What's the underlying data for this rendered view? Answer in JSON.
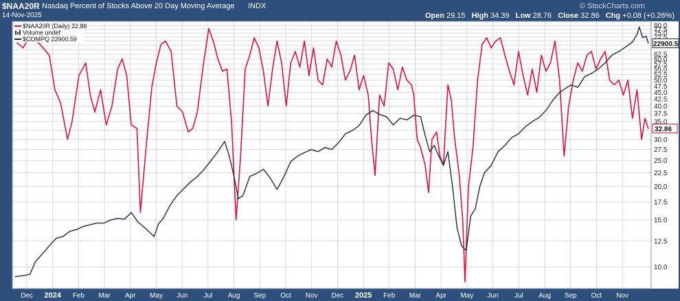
{
  "header": {
    "symbol": "$NAA20R",
    "description": "Nasdaq Percent of Stocks Above 20 Day Moving Average",
    "exchange": "INDX",
    "date": "14-Nov-2025",
    "watermark": "© StockCharts.com",
    "ohlc": {
      "open_label": "Open",
      "open": "29.15",
      "high_label": "High",
      "high": "34.39",
      "low_label": "Low",
      "low": "28.76",
      "close_label": "Close",
      "close": "32.86",
      "chg_label": "Chg",
      "chg": "+0.08 (+0.26%)"
    }
  },
  "legend": [
    {
      "label": "$NAA20R (Daily) 32.86",
      "color": "#d9113f"
    },
    {
      "label": "Volume undef",
      "color": "#333333"
    },
    {
      "label": "$COMPQ 22900.59",
      "color": "#1b2a3d"
    }
  ],
  "colors": {
    "naa20r": "#d9113f",
    "compq": "#1b2a3d",
    "grid": "#d9d9d9",
    "frame": "#2e4f7b"
  },
  "chart_data": {
    "type": "line",
    "x_axis_labels": [
      "Dec",
      "2024",
      "Feb",
      "Mar",
      "Apr",
      "May",
      "Jun",
      "Jul",
      "Aug",
      "Sep",
      "Oct",
      "Nov",
      "Dec",
      "2025",
      "Feb",
      "Mar",
      "Apr",
      "May",
      "Jun",
      "Jul",
      "Aug",
      "Sep",
      "Oct",
      "Nov"
    ],
    "y_tick_labels": [
      "80.0",
      "77.5",
      "75.0",
      "72.5",
      "70.0",
      "67.5",
      "65.0",
      "62.5",
      "60.0",
      "57.5",
      "55.0",
      "52.5",
      "50.0",
      "47.5",
      "45.0",
      "42.5",
      "40.0",
      "37.5",
      "35.0",
      "32.5",
      "30.0",
      "27.5",
      "25.0",
      "22.5",
      "20.0",
      "17.5",
      "15.0",
      "12.5",
      "10.0"
    ],
    "y_ticks_visible": [
      "80.0",
      "77.5",
      "75.0",
      "72.5",
      "70.0",
      "62.5",
      "60.0",
      "57.5",
      "55.0",
      "52.5",
      "50.0",
      "47.5",
      "45.0",
      "42.5",
      "40.0",
      "37.5",
      "35.0",
      "30.0",
      "27.5",
      "25.0",
      "22.5",
      "20.0",
      "17.5",
      "15.0",
      "12.5",
      "10.0"
    ],
    "y_scale": "log",
    "ylim": [
      8.3,
      83
    ],
    "last_value_labels": {
      "naa20r": "32.86",
      "compq": "22900.5"
    },
    "series": [
      {
        "name": "$NAA20R (Daily) 32.86",
        "unit": "percent",
        "points": [
          [
            0,
            70
          ],
          [
            0.7,
            66
          ],
          [
            1.3,
            73
          ],
          [
            2.2,
            68
          ],
          [
            3,
            62
          ],
          [
            3.5,
            46
          ],
          [
            4,
            41
          ],
          [
            4.6,
            30
          ],
          [
            5,
            35
          ],
          [
            5.6,
            52
          ],
          [
            6.2,
            58
          ],
          [
            6.6,
            44
          ],
          [
            7,
            38
          ],
          [
            7.5,
            46
          ],
          [
            8,
            34
          ],
          [
            8.5,
            40
          ],
          [
            9,
            55
          ],
          [
            9.4,
            60
          ],
          [
            9.8,
            52
          ],
          [
            10.2,
            34
          ],
          [
            10.7,
            33
          ],
          [
            11,
            16
          ],
          [
            11.5,
            28
          ],
          [
            12,
            47
          ],
          [
            12.4,
            58
          ],
          [
            12.8,
            68
          ],
          [
            13.2,
            70
          ],
          [
            13.7,
            64
          ],
          [
            14.2,
            40
          ],
          [
            14.7,
            38
          ],
          [
            15.2,
            32
          ],
          [
            15.6,
            33
          ],
          [
            16,
            38
          ],
          [
            16.5,
            56
          ],
          [
            17,
            78
          ],
          [
            17.4,
            70
          ],
          [
            17.8,
            60
          ],
          [
            18.2,
            54
          ],
          [
            18.6,
            55
          ],
          [
            19,
            35
          ],
          [
            19.4,
            15
          ],
          [
            19.8,
            26
          ],
          [
            20.2,
            55
          ],
          [
            20.6,
            62
          ],
          [
            21,
            72
          ],
          [
            21.4,
            66
          ],
          [
            21.8,
            54
          ],
          [
            22.2,
            40
          ],
          [
            22.6,
            55
          ],
          [
            23,
            70
          ],
          [
            23.4,
            58
          ],
          [
            23.8,
            40
          ],
          [
            24.2,
            58
          ],
          [
            24.6,
            64
          ],
          [
            25,
            56
          ],
          [
            25.4,
            70
          ],
          [
            25.8,
            52
          ],
          [
            26.2,
            66
          ],
          [
            26.6,
            50
          ],
          [
            27,
            48
          ],
          [
            27.4,
            60
          ],
          [
            27.8,
            56
          ],
          [
            28.2,
            70
          ],
          [
            28.6,
            62
          ],
          [
            29,
            50
          ],
          [
            29.4,
            54
          ],
          [
            29.8,
            62
          ],
          [
            30.2,
            46
          ],
          [
            30.6,
            52
          ],
          [
            31,
            44
          ],
          [
            31.3,
            30
          ],
          [
            31.6,
            22
          ],
          [
            32,
            44
          ],
          [
            32.4,
            40
          ],
          [
            32.8,
            58
          ],
          [
            33.2,
            55
          ],
          [
            33.6,
            46
          ],
          [
            34,
            56
          ],
          [
            34.4,
            50
          ],
          [
            34.8,
            48
          ],
          [
            35,
            44
          ],
          [
            35.3,
            30
          ],
          [
            35.6,
            28
          ],
          [
            36,
            24
          ],
          [
            36.3,
            19
          ],
          [
            36.6,
            30
          ],
          [
            37,
            32
          ],
          [
            37.3,
            26
          ],
          [
            37.6,
            24
          ],
          [
            38,
            48
          ],
          [
            38.3,
            42
          ],
          [
            38.6,
            30
          ],
          [
            39,
            22
          ],
          [
            39.3,
            15
          ],
          [
            39.5,
            8.8
          ],
          [
            39.8,
            20
          ],
          [
            40.2,
            28
          ],
          [
            40.6,
            50
          ],
          [
            41,
            68
          ],
          [
            41.4,
            72
          ],
          [
            41.8,
            66
          ],
          [
            42.2,
            70
          ],
          [
            42.6,
            72
          ],
          [
            43,
            62
          ],
          [
            43.4,
            54
          ],
          [
            43.8,
            48
          ],
          [
            44.2,
            64
          ],
          [
            44.6,
            52
          ],
          [
            45,
            44
          ],
          [
            45.4,
            55
          ],
          [
            45.8,
            45
          ],
          [
            46.2,
            62
          ],
          [
            46.6,
            54
          ],
          [
            47,
            58
          ],
          [
            47.4,
            70
          ],
          [
            47.8,
            50
          ],
          [
            48.2,
            26
          ],
          [
            48.6,
            40
          ],
          [
            49,
            50
          ],
          [
            49.4,
            58
          ],
          [
            49.8,
            54
          ],
          [
            50.2,
            62
          ],
          [
            50.6,
            64
          ],
          [
            51,
            55
          ],
          [
            51.4,
            60
          ],
          [
            51.8,
            64
          ],
          [
            52.2,
            50
          ],
          [
            52.6,
            48
          ],
          [
            53,
            50
          ],
          [
            53.4,
            44
          ],
          [
            53.8,
            50
          ],
          [
            54.2,
            36
          ],
          [
            54.6,
            46
          ],
          [
            55,
            30
          ],
          [
            55.3,
            36
          ],
          [
            55.6,
            32.86
          ]
        ]
      },
      {
        "name": "$COMPQ 22900.59",
        "unit": "index",
        "points": [
          [
            0,
            9.2
          ],
          [
            0.8,
            9.3
          ],
          [
            1.3,
            9.4
          ],
          [
            1.8,
            10.5
          ],
          [
            2.4,
            11.2
          ],
          [
            3,
            12
          ],
          [
            3.6,
            12.8
          ],
          [
            4.2,
            13
          ],
          [
            4.8,
            13.6
          ],
          [
            5.4,
            13.8
          ],
          [
            6,
            14.2
          ],
          [
            6.6,
            14.4
          ],
          [
            7.2,
            14.6
          ],
          [
            7.8,
            14.6
          ],
          [
            8.4,
            15
          ],
          [
            9,
            15.2
          ],
          [
            9.6,
            15.1
          ],
          [
            10.2,
            16
          ],
          [
            10.8,
            14.7
          ],
          [
            11.4,
            14
          ],
          [
            11.8,
            13.5
          ],
          [
            12.2,
            13
          ],
          [
            12.6,
            14.5
          ],
          [
            13,
            15.2
          ],
          [
            13.6,
            17
          ],
          [
            14.2,
            18.5
          ],
          [
            14.8,
            19.6
          ],
          [
            15.4,
            20.8
          ],
          [
            16,
            21.8
          ],
          [
            16.6,
            23.2
          ],
          [
            17.2,
            25
          ],
          [
            17.8,
            27
          ],
          [
            18.4,
            29.5
          ],
          [
            18.8,
            26
          ],
          [
            19.2,
            22
          ],
          [
            19.6,
            18
          ],
          [
            20,
            18.5
          ],
          [
            20.6,
            21.8
          ],
          [
            21.2,
            22.4
          ],
          [
            21.8,
            23.2
          ],
          [
            22.4,
            21.5
          ],
          [
            23,
            19.5
          ],
          [
            23.6,
            21.8
          ],
          [
            24.2,
            24.8
          ],
          [
            24.8,
            26
          ],
          [
            25.4,
            26.8
          ],
          [
            26,
            27.5
          ],
          [
            26.6,
            27
          ],
          [
            27.2,
            28
          ],
          [
            27.8,
            27.5
          ],
          [
            28.4,
            29.2
          ],
          [
            29,
            31.5
          ],
          [
            29.6,
            32.4
          ],
          [
            30.2,
            33.8
          ],
          [
            30.8,
            37
          ],
          [
            31.4,
            38.5
          ],
          [
            32,
            37.2
          ],
          [
            32.6,
            36.5
          ],
          [
            33.2,
            34
          ],
          [
            33.8,
            36
          ],
          [
            34.4,
            35.5
          ],
          [
            35,
            37
          ],
          [
            35.6,
            36.5
          ],
          [
            36,
            31
          ],
          [
            36.4,
            27
          ],
          [
            36.8,
            28.5
          ],
          [
            37.2,
            26
          ],
          [
            37.6,
            24
          ],
          [
            38,
            27
          ],
          [
            38.4,
            20
          ],
          [
            38.8,
            14
          ],
          [
            39.2,
            12
          ],
          [
            39.6,
            11.5
          ],
          [
            40,
            15.5
          ],
          [
            40.4,
            16.5
          ],
          [
            40.8,
            20
          ],
          [
            41.2,
            22.5
          ],
          [
            41.8,
            24
          ],
          [
            42.4,
            27
          ],
          [
            43,
            28.5
          ],
          [
            43.6,
            30.5
          ],
          [
            44.2,
            31.5
          ],
          [
            44.8,
            33.5
          ],
          [
            45.4,
            35
          ],
          [
            46,
            36.2
          ],
          [
            46.6,
            38.5
          ],
          [
            47.2,
            42
          ],
          [
            47.8,
            45
          ],
          [
            48.4,
            46.8
          ],
          [
            48.8,
            48
          ],
          [
            49.4,
            47
          ],
          [
            50,
            51.5
          ],
          [
            50.6,
            53
          ],
          [
            51.2,
            55
          ],
          [
            51.8,
            58
          ],
          [
            52.4,
            62
          ],
          [
            53,
            64
          ],
          [
            53.6,
            66.5
          ],
          [
            54.2,
            69.5
          ],
          [
            54.6,
            74
          ],
          [
            54.8,
            79
          ],
          [
            55.1,
            72
          ],
          [
            55.4,
            73
          ],
          [
            55.6,
            68.5
          ]
        ]
      }
    ]
  }
}
